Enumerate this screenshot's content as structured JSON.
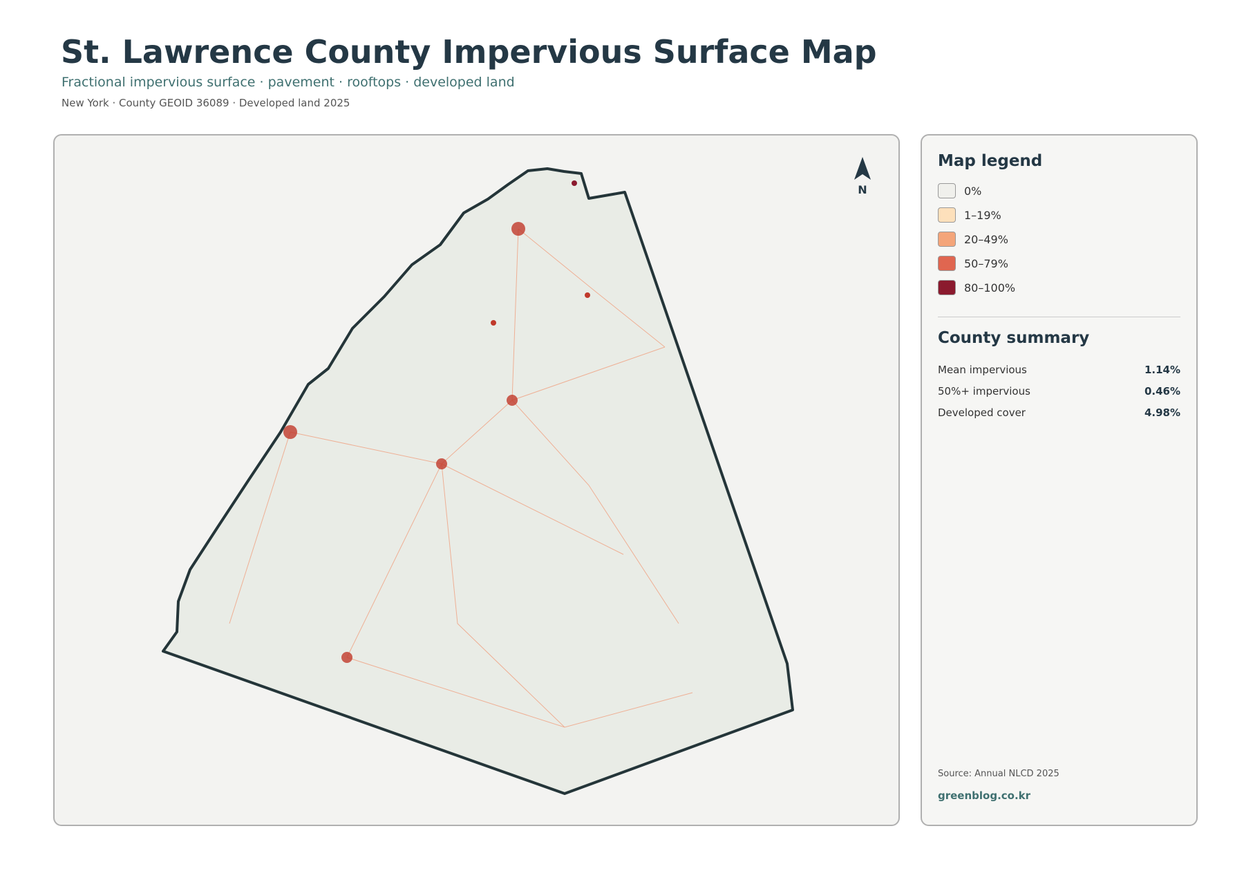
{
  "header": {
    "title": "St. Lawrence County Impervious Surface Map",
    "subtitle": "Fractional impervious surface · pavement · rooftops · developed land",
    "meta": "New York · County GEOID 36089 · Developed land 2025"
  },
  "map": {
    "north_label": "N"
  },
  "legend": {
    "title": "Map legend",
    "items": [
      {
        "label": "0%",
        "color": "#f0f0ec"
      },
      {
        "label": "1–19%",
        "color": "#fde0bb"
      },
      {
        "label": "20–49%",
        "color": "#f4a57a"
      },
      {
        "label": "50–79%",
        "color": "#e06650"
      },
      {
        "label": "80–100%",
        "color": "#8b1a2e"
      }
    ]
  },
  "summary": {
    "title": "County summary",
    "rows": [
      {
        "label": "Mean impervious",
        "value": "1.14%"
      },
      {
        "label": "50%+ impervious",
        "value": "0.46%"
      },
      {
        "label": "Developed cover",
        "value": "4.98%"
      }
    ]
  },
  "footer": {
    "source": "Source: Annual NLCD 2025",
    "site": "greenblog.co.kr"
  }
}
